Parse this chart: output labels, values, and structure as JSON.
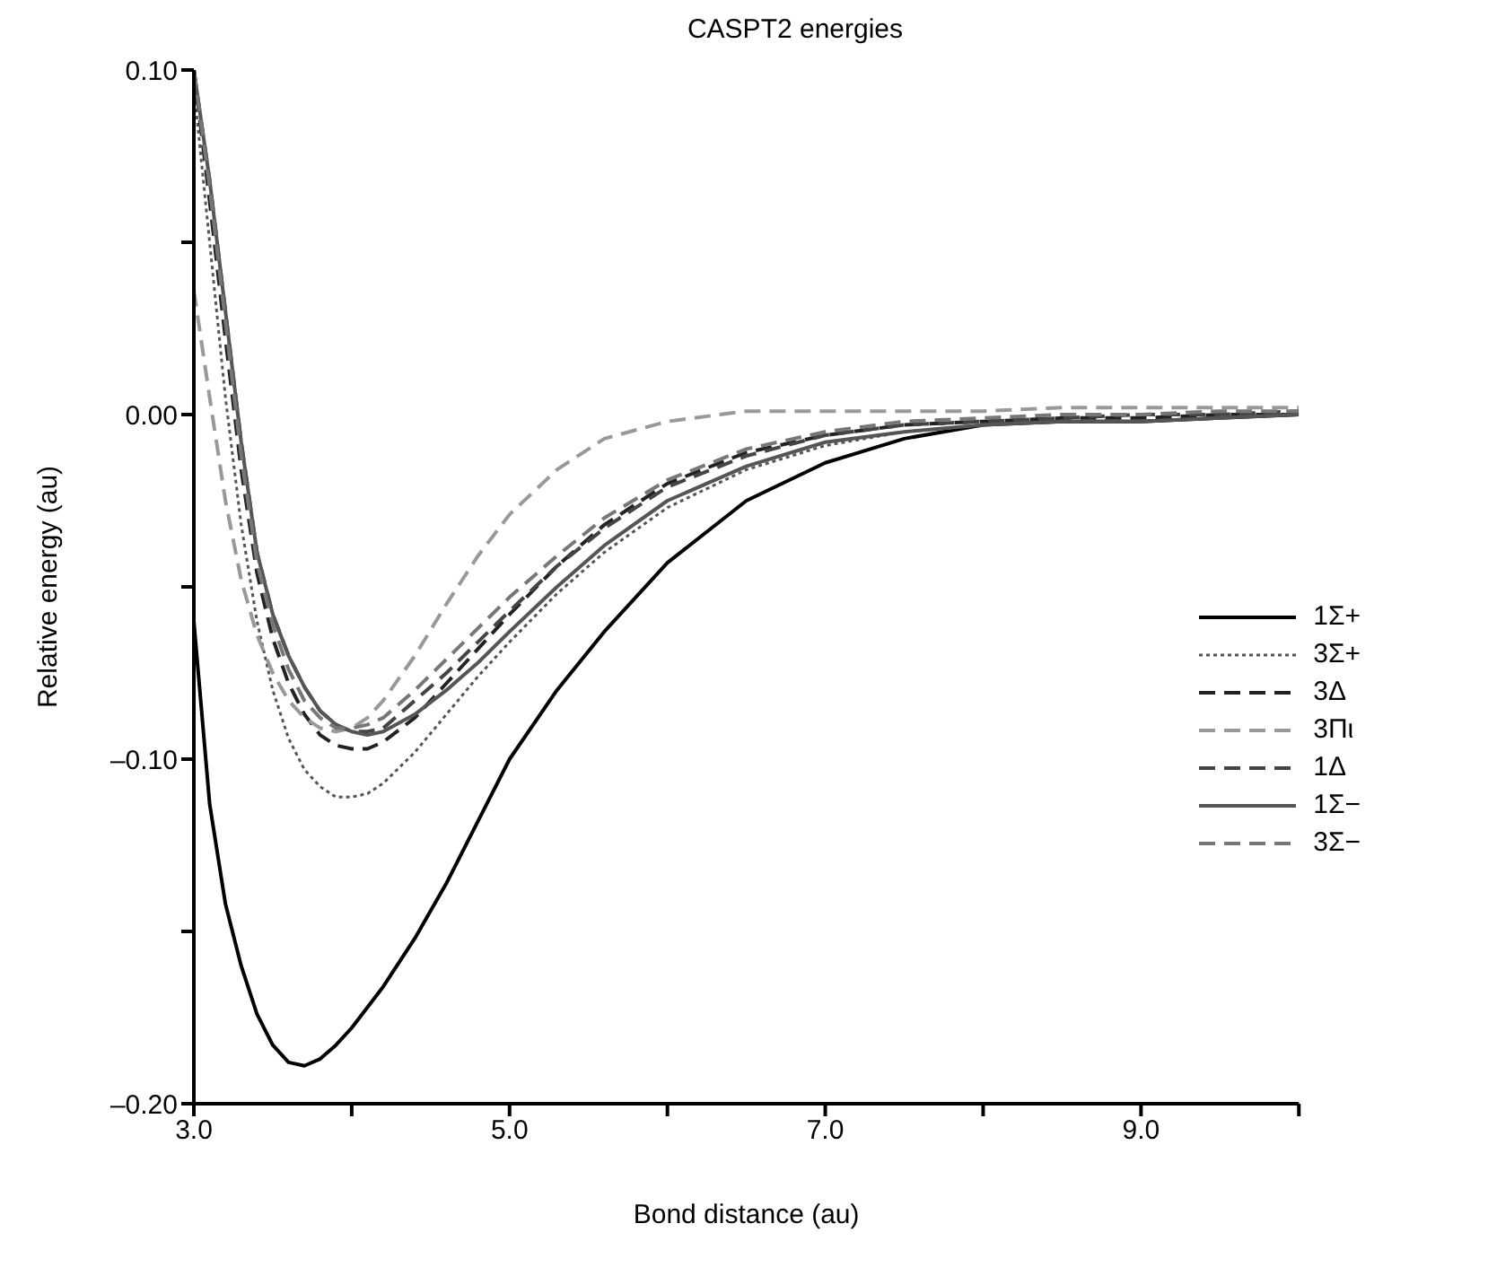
{
  "chart_data": {
    "type": "line",
    "title": "CASPT2 energies",
    "xlabel": "Bond distance (au)",
    "ylabel": "Relative energy (au)",
    "x": [
      3.0,
      3.1,
      3.2,
      3.3,
      3.4,
      3.5,
      3.6,
      3.7,
      3.8,
      3.9,
      4.0,
      4.1,
      4.2,
      4.4,
      4.6,
      4.8,
      5.0,
      5.3,
      5.6,
      6.0,
      6.5,
      7.0,
      7.5,
      8.0,
      8.5,
      9.0,
      9.5,
      10.0
    ],
    "series": [
      {
        "name": "1Σ+",
        "color": "#000000",
        "line_style": "solid",
        "values": [
          -0.06,
          -0.113,
          -0.142,
          -0.16,
          -0.174,
          -0.183,
          -0.188,
          -0.189,
          -0.187,
          -0.183,
          -0.178,
          -0.172,
          -0.166,
          -0.152,
          -0.136,
          -0.118,
          -0.1,
          -0.08,
          -0.063,
          -0.043,
          -0.025,
          -0.014,
          -0.007,
          -0.003,
          -0.002,
          -0.002,
          -0.001,
          0.0
        ]
      },
      {
        "name": "3Σ+",
        "color": "#555555",
        "line_style": "dotted",
        "values": [
          0.095,
          0.05,
          0.005,
          -0.032,
          -0.06,
          -0.08,
          -0.094,
          -0.103,
          -0.108,
          -0.111,
          -0.111,
          -0.11,
          -0.107,
          -0.098,
          -0.087,
          -0.076,
          -0.066,
          -0.052,
          -0.04,
          -0.027,
          -0.016,
          -0.009,
          -0.005,
          -0.003,
          -0.002,
          -0.002,
          -0.001,
          0.0
        ]
      },
      {
        "name": "3Δ",
        "color": "#222222",
        "line_style": "dashed",
        "values": [
          0.1,
          0.062,
          0.022,
          -0.016,
          -0.046,
          -0.065,
          -0.078,
          -0.087,
          -0.093,
          -0.096,
          -0.097,
          -0.097,
          -0.095,
          -0.088,
          -0.078,
          -0.068,
          -0.058,
          -0.044,
          -0.032,
          -0.02,
          -0.011,
          -0.006,
          -0.003,
          -0.002,
          -0.001,
          -0.001,
          0.0,
          0.0
        ]
      },
      {
        "name": "3Πι",
        "color": "#999999",
        "line_style": "dashed",
        "values": [
          0.036,
          0.005,
          -0.025,
          -0.048,
          -0.064,
          -0.075,
          -0.083,
          -0.088,
          -0.091,
          -0.092,
          -0.091,
          -0.088,
          -0.083,
          -0.07,
          -0.055,
          -0.041,
          -0.029,
          -0.016,
          -0.007,
          -0.002,
          0.001,
          0.001,
          0.001,
          0.001,
          0.002,
          0.002,
          0.002,
          0.002
        ]
      },
      {
        "name": "1Δ",
        "color": "#444444",
        "line_style": "dashed",
        "values": [
          0.1,
          0.068,
          0.03,
          -0.008,
          -0.04,
          -0.058,
          -0.07,
          -0.079,
          -0.086,
          -0.09,
          -0.092,
          -0.092,
          -0.091,
          -0.083,
          -0.075,
          -0.066,
          -0.057,
          -0.044,
          -0.033,
          -0.021,
          -0.012,
          -0.006,
          -0.003,
          -0.002,
          -0.001,
          0.0,
          0.0,
          0.001
        ]
      },
      {
        "name": "1Σ−",
        "color": "#555555",
        "line_style": "solid",
        "values": [
          0.1,
          0.068,
          0.03,
          -0.008,
          -0.04,
          -0.058,
          -0.07,
          -0.079,
          -0.086,
          -0.09,
          -0.092,
          -0.093,
          -0.092,
          -0.087,
          -0.08,
          -0.072,
          -0.063,
          -0.05,
          -0.038,
          -0.025,
          -0.015,
          -0.008,
          -0.005,
          -0.003,
          -0.002,
          -0.002,
          -0.001,
          0.0
        ]
      },
      {
        "name": "3Σ−",
        "color": "#777777",
        "line_style": "dashed",
        "values": [
          0.1,
          0.066,
          0.027,
          -0.012,
          -0.043,
          -0.061,
          -0.074,
          -0.083,
          -0.088,
          -0.091,
          -0.091,
          -0.09,
          -0.088,
          -0.08,
          -0.071,
          -0.062,
          -0.053,
          -0.041,
          -0.03,
          -0.019,
          -0.01,
          -0.005,
          -0.002,
          -0.001,
          0.0,
          0.0,
          0.001,
          0.001
        ]
      }
    ],
    "xlim": [
      3.0,
      10.0
    ],
    "xticks": [
      {
        "value": 3,
        "label": "3.0"
      },
      {
        "value": 4,
        "label": null
      },
      {
        "value": 5,
        "label": "5.0"
      },
      {
        "value": 6,
        "label": null
      },
      {
        "value": 7,
        "label": "7.0"
      },
      {
        "value": 8,
        "label": null
      },
      {
        "value": 9,
        "label": "9.0"
      },
      {
        "value": 10,
        "label": null
      }
    ],
    "ylim": [
      -0.2,
      0.1
    ],
    "yticks": [
      {
        "value": 0.1,
        "label": "0.10"
      },
      {
        "value": 0.05,
        "label": null
      },
      {
        "value": 0,
        "label": "0.00"
      },
      {
        "value": -0.05,
        "label": null
      },
      {
        "value": -0.1,
        "label": "–0.10"
      },
      {
        "value": -0.15,
        "label": null
      },
      {
        "value": -0.2,
        "label": "–0.20"
      }
    ],
    "grid": false,
    "legend": "right",
    "marker": "none"
  }
}
